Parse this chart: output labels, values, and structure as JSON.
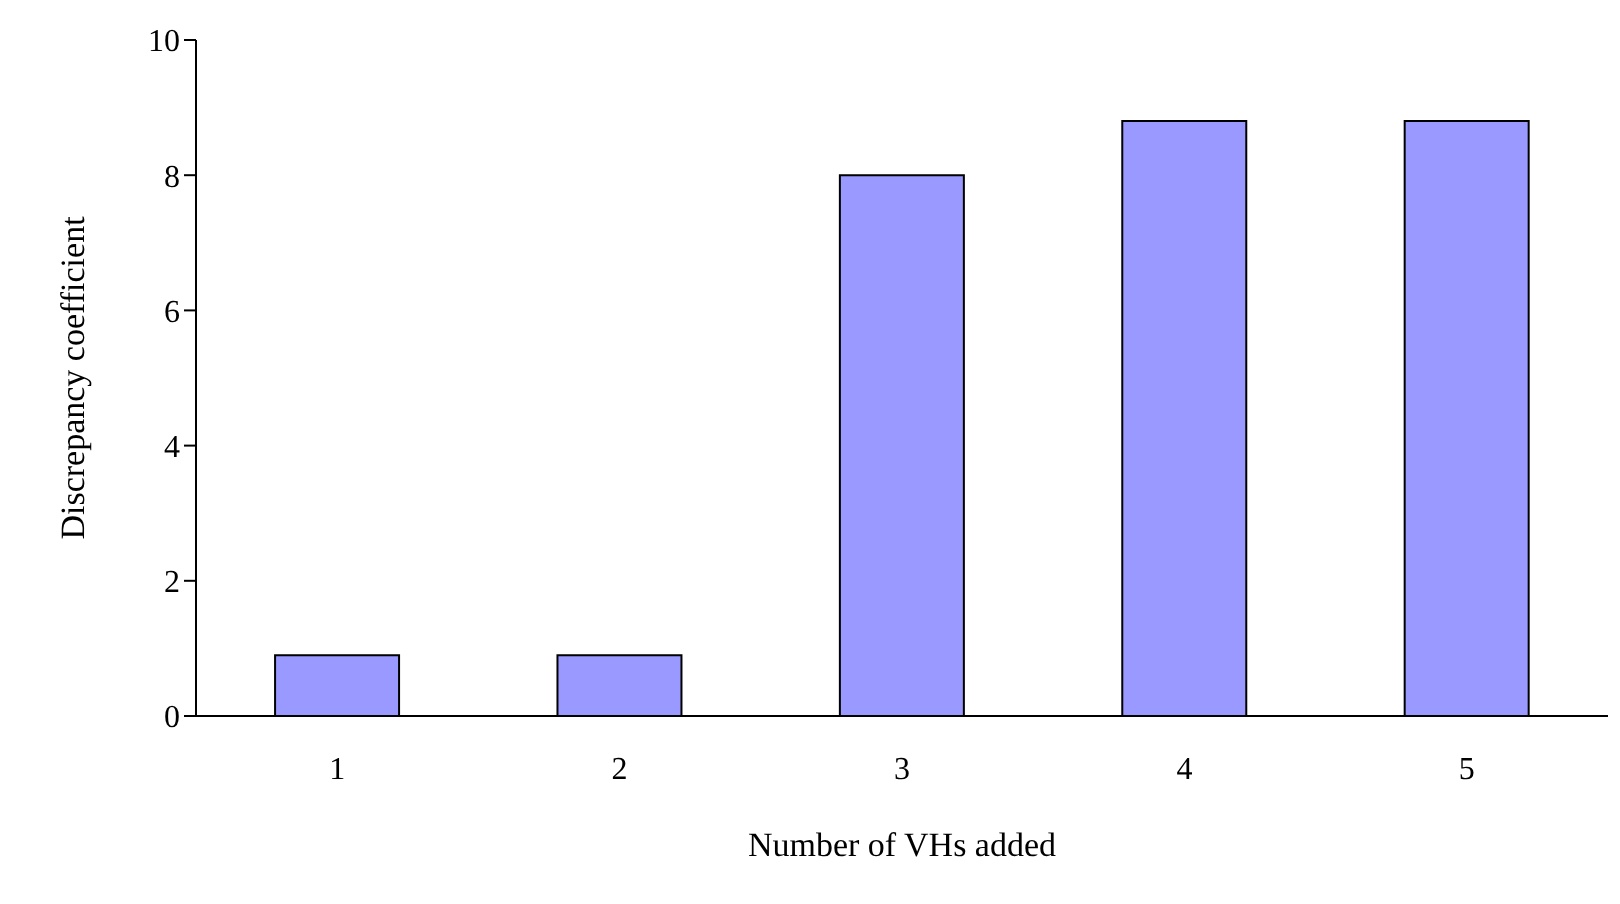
{
  "chart_data": {
    "type": "bar",
    "xlabel": "Number of VHs added",
    "ylabel": "Discrepancy coefficient",
    "categories": [
      "1",
      "2",
      "3",
      "4",
      "5"
    ],
    "values": [
      0.9,
      0.9,
      8.0,
      8.8,
      8.8
    ],
    "color": "#9999ff",
    "ylim": [
      0,
      10
    ],
    "yticks": [
      0,
      2,
      4,
      6,
      8,
      10
    ],
    "grid": false,
    "legend": false
  }
}
